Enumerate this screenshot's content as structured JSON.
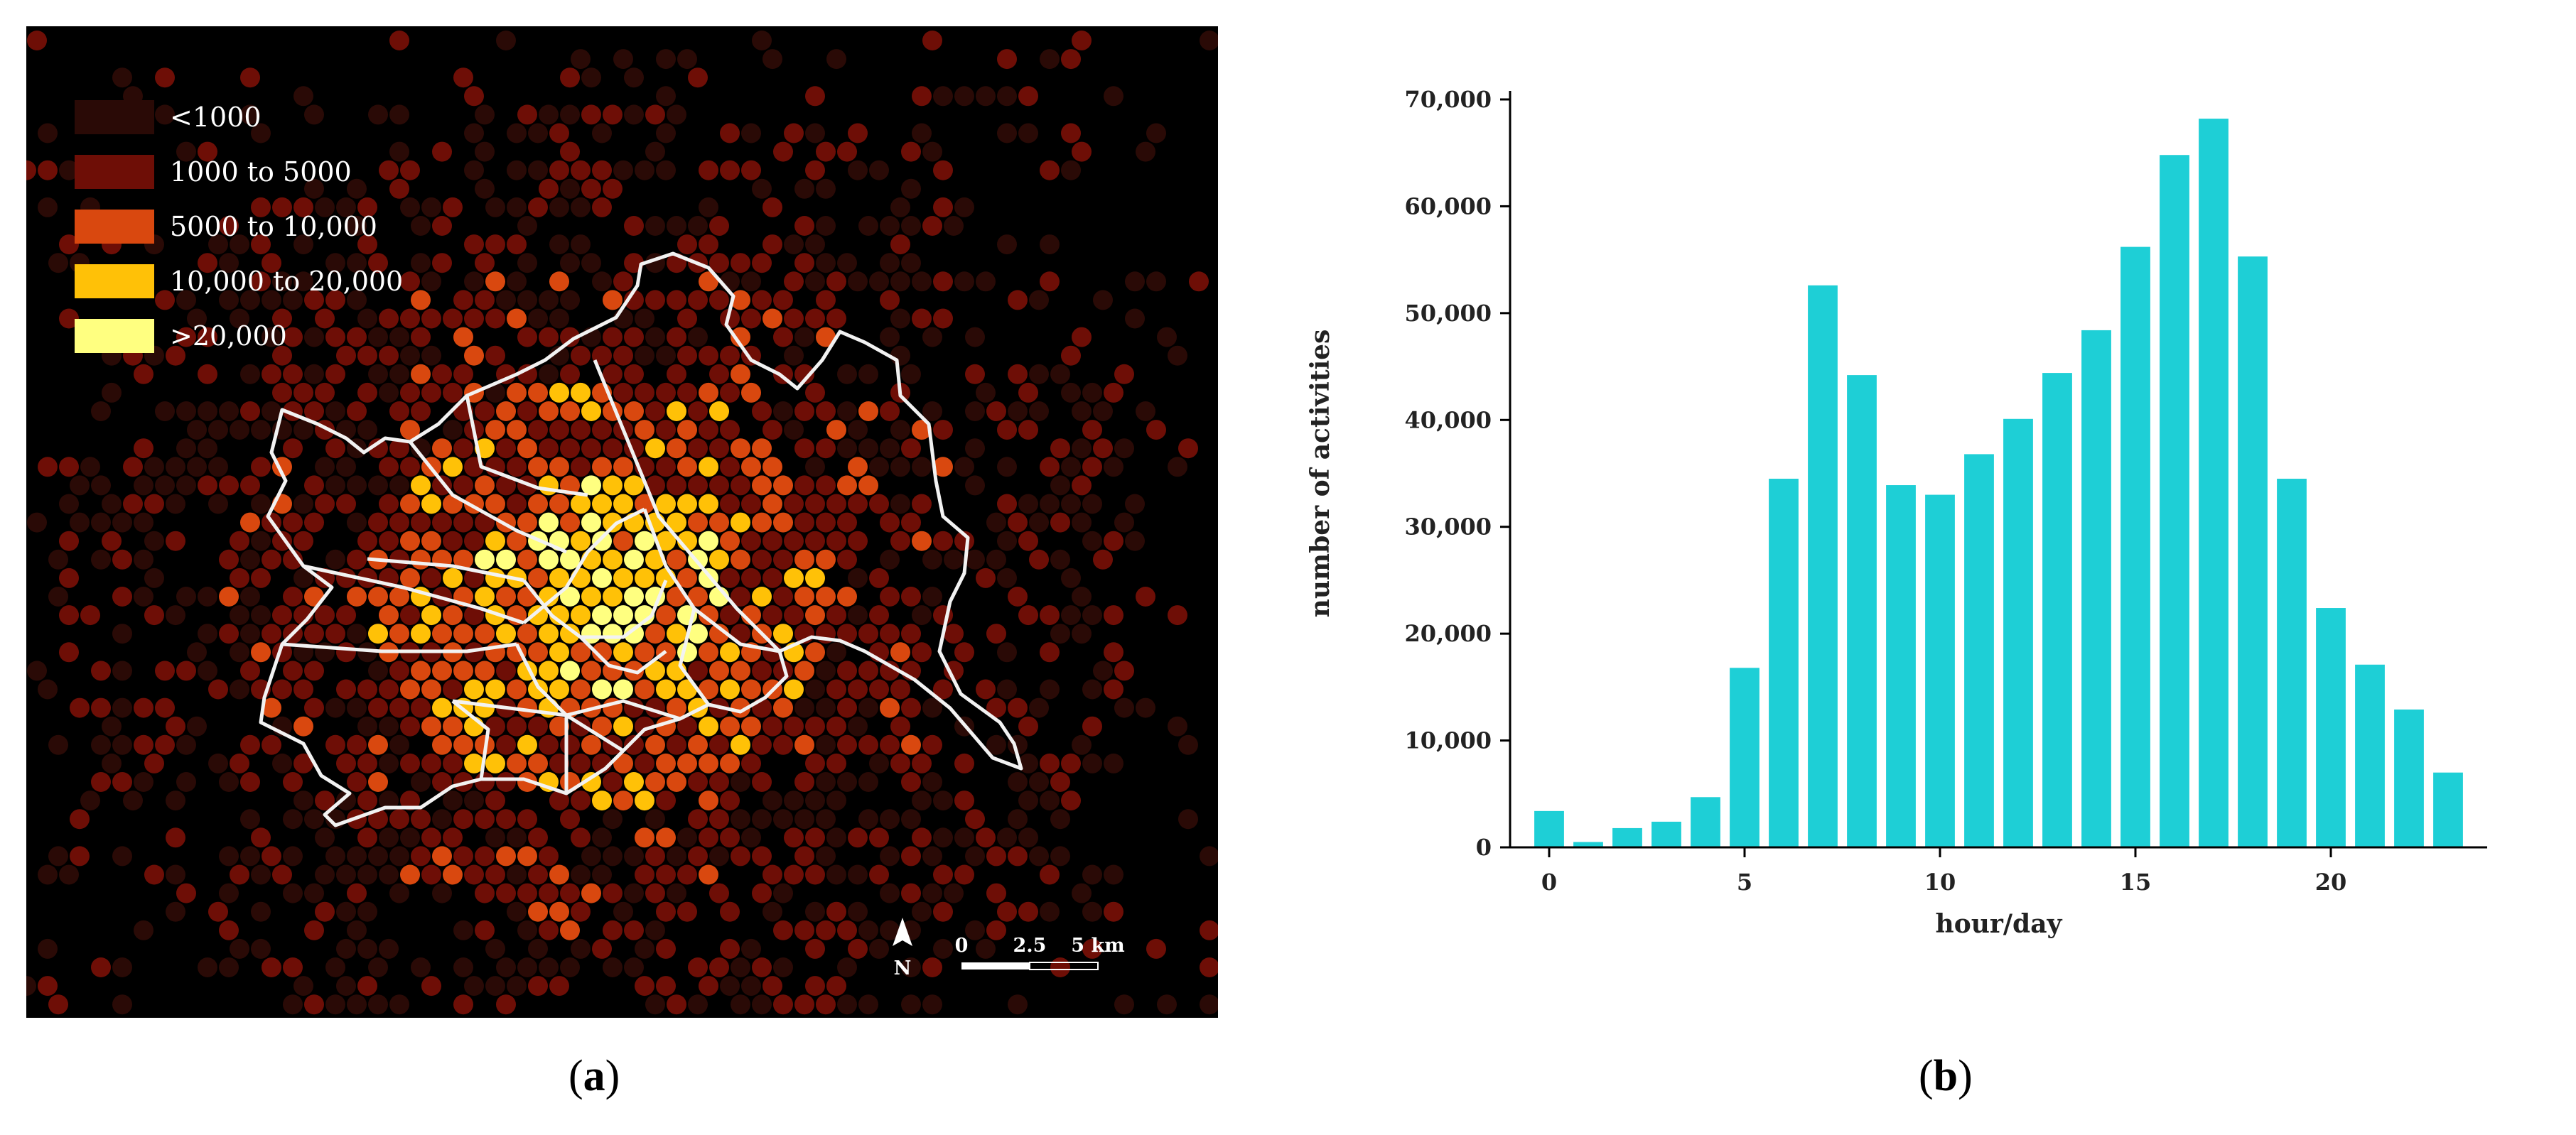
{
  "panel_a": {
    "caption_label": "a",
    "legend": [
      {
        "label": "<1000",
        "color": "#2a0a06"
      },
      {
        "label": "1000 to 5000",
        "color": "#6e0e06"
      },
      {
        "label": "5000 to 10,000",
        "color": "#d9480f"
      },
      {
        "label": "10,000 to 20,000",
        "color": "#ffc107"
      },
      {
        "label": ">20,000",
        "color": "#ffff80"
      }
    ],
    "north_label": "N",
    "scale_bar": {
      "labels": [
        "0",
        "2.5",
        "5 km"
      ]
    },
    "map_icon": "north-arrow-icon"
  },
  "panel_b": {
    "caption_label": "b"
  },
  "chart_data": {
    "type": "bar",
    "xlabel": "hour/day",
    "ylabel": "number of activities",
    "x": [
      0,
      1,
      2,
      3,
      4,
      5,
      6,
      7,
      8,
      9,
      10,
      11,
      12,
      13,
      14,
      15,
      16,
      17,
      18,
      19,
      20,
      21,
      22,
      23
    ],
    "values": [
      3400,
      500,
      1800,
      2400,
      4700,
      16800,
      34500,
      52600,
      44200,
      33900,
      33000,
      36800,
      40100,
      44400,
      48400,
      56200,
      64800,
      68200,
      55300,
      34500,
      22400,
      17100,
      12900,
      7000
    ],
    "xticks": [
      0,
      5,
      10,
      15,
      20
    ],
    "yticks": [
      0,
      10000,
      20000,
      30000,
      40000,
      50000,
      60000,
      70000
    ],
    "ytick_labels": [
      "0",
      "10,000",
      "20,000",
      "30,000",
      "40,000",
      "50,000",
      "60,000",
      "70,000"
    ],
    "ylim": [
      0,
      70000
    ],
    "xlim": [
      -1,
      24
    ],
    "bar_color": "#1ecfd6",
    "grid": false
  }
}
